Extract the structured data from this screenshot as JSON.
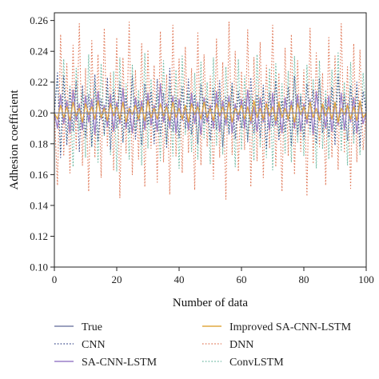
{
  "chart_data": {
    "type": "line",
    "xlabel": "Number of data",
    "ylabel": "Adhesion coefficient",
    "xlim": [
      0,
      100
    ],
    "ylim": [
      0.1,
      0.265
    ],
    "x_ticks": [
      0,
      20,
      40,
      60,
      80,
      100
    ],
    "x_tick_labels": [
      "0",
      "20",
      "40",
      "60",
      "80",
      "100"
    ],
    "y_ticks": [
      0.1,
      0.12,
      0.14,
      0.16,
      0.18,
      0.2,
      0.22,
      0.24,
      0.26
    ],
    "y_tick_labels": [
      "0.10",
      "0.12",
      "0.14",
      "0.16",
      "0.18",
      "0.20",
      "0.22",
      "0.24",
      "0.26"
    ],
    "grid": false,
    "legend_position": "bottom",
    "series": [
      {
        "name": "True",
        "color": "#7a82a8",
        "style": "solid",
        "x": [
          0,
          100
        ],
        "values": [
          0.2,
          0.2
        ]
      },
      {
        "name": "CNN",
        "color": "#3a4a8c",
        "style": "dotted",
        "x": [
          0,
          1,
          2,
          3,
          4,
          5,
          6,
          7,
          8,
          9,
          10,
          11,
          12,
          13,
          14,
          15,
          16,
          17,
          18,
          19,
          20,
          21,
          22,
          23,
          24,
          25,
          26,
          27,
          28,
          29,
          30,
          31,
          32,
          33,
          34,
          35,
          36,
          37,
          38,
          39,
          40,
          41,
          42,
          43,
          44,
          45,
          46,
          47,
          48,
          49,
          50,
          51,
          52,
          53,
          54,
          55,
          56,
          57,
          58,
          59,
          60,
          61,
          62,
          63,
          64,
          65,
          66,
          67,
          68,
          69,
          70,
          71,
          72,
          73,
          74,
          75,
          76,
          77,
          78,
          79,
          80,
          81,
          82,
          83,
          84,
          85,
          86,
          87,
          88,
          89,
          90,
          91,
          92,
          93,
          94,
          95,
          96,
          97,
          98,
          99,
          100
        ],
        "values": [
          0.2,
          0.226,
          0.171,
          0.224,
          0.179,
          0.216,
          0.188,
          0.221,
          0.175,
          0.218,
          0.184,
          0.212,
          0.178,
          0.225,
          0.182,
          0.209,
          0.186,
          0.223,
          0.176,
          0.215,
          0.19,
          0.22,
          0.181,
          0.211,
          0.187,
          0.224,
          0.183,
          0.208,
          0.179,
          0.219,
          0.192,
          0.214,
          0.18,
          0.222,
          0.185,
          0.213,
          0.177,
          0.229,
          0.188,
          0.21,
          0.184,
          0.217,
          0.19,
          0.222,
          0.186,
          0.212,
          0.18,
          0.219,
          0.193,
          0.209,
          0.182,
          0.216,
          0.189,
          0.221,
          0.178,
          0.211,
          0.186,
          0.22,
          0.183,
          0.214,
          0.19,
          0.209,
          0.181,
          0.223,
          0.187,
          0.212,
          0.184,
          0.218,
          0.177,
          0.213,
          0.191,
          0.221,
          0.182,
          0.208,
          0.188,
          0.217,
          0.179,
          0.224,
          0.186,
          0.211,
          0.183,
          0.219,
          0.19,
          0.215,
          0.18,
          0.222,
          0.187,
          0.209,
          0.184,
          0.217,
          0.179,
          0.225,
          0.189,
          0.212,
          0.182,
          0.218,
          0.186,
          0.22,
          0.178,
          0.214,
          0.2
        ]
      },
      {
        "name": "SA-CNN-LSTM",
        "color": "#9a7ec8",
        "style": "solid",
        "x": [
          0,
          1,
          2,
          3,
          4,
          5,
          6,
          7,
          8,
          9,
          10,
          11,
          12,
          13,
          14,
          15,
          16,
          17,
          18,
          19,
          20,
          21,
          22,
          23,
          24,
          25,
          26,
          27,
          28,
          29,
          30,
          31,
          32,
          33,
          34,
          35,
          36,
          37,
          38,
          39,
          40,
          41,
          42,
          43,
          44,
          45,
          46,
          47,
          48,
          49,
          50,
          51,
          52,
          53,
          54,
          55,
          56,
          57,
          58,
          59,
          60,
          61,
          62,
          63,
          64,
          65,
          66,
          67,
          68,
          69,
          70,
          71,
          72,
          73,
          74,
          75,
          76,
          77,
          78,
          79,
          80,
          81,
          82,
          83,
          84,
          85,
          86,
          87,
          88,
          89,
          90,
          91,
          92,
          93,
          94,
          95,
          96,
          97,
          98,
          99,
          100
        ],
        "values": [
          0.2,
          0.19,
          0.212,
          0.193,
          0.208,
          0.187,
          0.215,
          0.195,
          0.206,
          0.189,
          0.211,
          0.194,
          0.209,
          0.186,
          0.214,
          0.196,
          0.205,
          0.191,
          0.212,
          0.188,
          0.207,
          0.193,
          0.216,
          0.19,
          0.204,
          0.187,
          0.21,
          0.195,
          0.208,
          0.189,
          0.213,
          0.192,
          0.205,
          0.188,
          0.219,
          0.194,
          0.206,
          0.19,
          0.211,
          0.187,
          0.209,
          0.195,
          0.204,
          0.189,
          0.213,
          0.193,
          0.207,
          0.186,
          0.21,
          0.194,
          0.205,
          0.19,
          0.214,
          0.188,
          0.208,
          0.192,
          0.211,
          0.187,
          0.206,
          0.195,
          0.209,
          0.19,
          0.215,
          0.193,
          0.204,
          0.188,
          0.21,
          0.194,
          0.207,
          0.189,
          0.213,
          0.192,
          0.205,
          0.187,
          0.21,
          0.195,
          0.208,
          0.19,
          0.212,
          0.188,
          0.206,
          0.193,
          0.209,
          0.186,
          0.214,
          0.195,
          0.205,
          0.19,
          0.211,
          0.188,
          0.207,
          0.192,
          0.213,
          0.189,
          0.206,
          0.194,
          0.21,
          0.187,
          0.208,
          0.193,
          0.2
        ]
      },
      {
        "name": "Improved SA-CNN-LSTM",
        "color": "#e0a840",
        "style": "solid",
        "x": [
          0,
          1,
          2,
          3,
          4,
          5,
          6,
          7,
          8,
          9,
          10,
          11,
          12,
          13,
          14,
          15,
          16,
          17,
          18,
          19,
          20,
          21,
          22,
          23,
          24,
          25,
          26,
          27,
          28,
          29,
          30,
          31,
          32,
          33,
          34,
          35,
          36,
          37,
          38,
          39,
          40,
          41,
          42,
          43,
          44,
          45,
          46,
          47,
          48,
          49,
          50,
          51,
          52,
          53,
          54,
          55,
          56,
          57,
          58,
          59,
          60,
          61,
          62,
          63,
          64,
          65,
          66,
          67,
          68,
          69,
          70,
          71,
          72,
          73,
          74,
          75,
          76,
          77,
          78,
          79,
          80,
          81,
          82,
          83,
          84,
          85,
          86,
          87,
          88,
          89,
          90,
          91,
          92,
          93,
          94,
          95,
          96,
          97,
          98,
          99,
          100
        ],
        "values": [
          0.2,
          0.196,
          0.205,
          0.197,
          0.204,
          0.195,
          0.207,
          0.198,
          0.203,
          0.194,
          0.206,
          0.199,
          0.204,
          0.196,
          0.208,
          0.197,
          0.203,
          0.195,
          0.206,
          0.198,
          0.204,
          0.196,
          0.207,
          0.194,
          0.203,
          0.199,
          0.205,
          0.196,
          0.204,
          0.195,
          0.208,
          0.197,
          0.203,
          0.196,
          0.206,
          0.198,
          0.204,
          0.195,
          0.207,
          0.197,
          0.203,
          0.196,
          0.205,
          0.194,
          0.206,
          0.199,
          0.204,
          0.196,
          0.207,
          0.197,
          0.203,
          0.195,
          0.206,
          0.198,
          0.204,
          0.196,
          0.207,
          0.194,
          0.203,
          0.199,
          0.205,
          0.196,
          0.204,
          0.195,
          0.208,
          0.197,
          0.203,
          0.196,
          0.206,
          0.198,
          0.204,
          0.195,
          0.207,
          0.197,
          0.203,
          0.196,
          0.205,
          0.194,
          0.206,
          0.199,
          0.204,
          0.196,
          0.207,
          0.197,
          0.203,
          0.195,
          0.206,
          0.198,
          0.204,
          0.196,
          0.207,
          0.194,
          0.203,
          0.199,
          0.205,
          0.196,
          0.204,
          0.195,
          0.208,
          0.197,
          0.2
        ]
      },
      {
        "name": "DNN",
        "color": "#e07a5a",
        "style": "dotted",
        "x": [
          0,
          1,
          2,
          3,
          4,
          5,
          6,
          7,
          8,
          9,
          10,
          11,
          12,
          13,
          14,
          15,
          16,
          17,
          18,
          19,
          20,
          21,
          22,
          23,
          24,
          25,
          26,
          27,
          28,
          29,
          30,
          31,
          32,
          33,
          34,
          35,
          36,
          37,
          38,
          39,
          40,
          41,
          42,
          43,
          44,
          45,
          46,
          47,
          48,
          49,
          50,
          51,
          52,
          53,
          54,
          55,
          56,
          57,
          58,
          59,
          60,
          61,
          62,
          63,
          64,
          65,
          66,
          67,
          68,
          69,
          70,
          71,
          72,
          73,
          74,
          75,
          76,
          77,
          78,
          79,
          80,
          81,
          82,
          83,
          84,
          85,
          86,
          87,
          88,
          89,
          90,
          91,
          92,
          93,
          94,
          95,
          96,
          97,
          98,
          99,
          100
        ],
        "values": [
          0.2,
          0.153,
          0.251,
          0.172,
          0.232,
          0.161,
          0.244,
          0.176,
          0.258,
          0.166,
          0.229,
          0.149,
          0.247,
          0.171,
          0.238,
          0.158,
          0.255,
          0.178,
          0.226,
          0.163,
          0.249,
          0.145,
          0.236,
          0.174,
          0.259,
          0.16,
          0.228,
          0.17,
          0.245,
          0.152,
          0.241,
          0.177,
          0.231,
          0.155,
          0.253,
          0.168,
          0.225,
          0.147,
          0.257,
          0.172,
          0.235,
          0.161,
          0.243,
          0.174,
          0.229,
          0.15,
          0.252,
          0.166,
          0.238,
          0.178,
          0.224,
          0.157,
          0.248,
          0.171,
          0.233,
          0.144,
          0.259,
          0.173,
          0.24,
          0.162,
          0.227,
          0.176,
          0.254,
          0.152,
          0.236,
          0.169,
          0.246,
          0.158,
          0.231,
          0.177,
          0.257,
          0.165,
          0.226,
          0.149,
          0.242,
          0.172,
          0.251,
          0.16,
          0.234,
          0.175,
          0.228,
          0.146,
          0.255,
          0.167,
          0.239,
          0.178,
          0.226,
          0.153,
          0.249,
          0.171,
          0.237,
          0.163,
          0.258,
          0.174,
          0.23,
          0.151,
          0.245,
          0.168,
          0.241,
          0.176,
          0.2
        ]
      },
      {
        "name": "ConvLSTM",
        "color": "#6ab8a0",
        "style": "dotted",
        "x": [
          0,
          1,
          2,
          3,
          4,
          5,
          6,
          7,
          8,
          9,
          10,
          11,
          12,
          13,
          14,
          15,
          16,
          17,
          18,
          19,
          20,
          21,
          22,
          23,
          24,
          25,
          26,
          27,
          28,
          29,
          30,
          31,
          32,
          33,
          34,
          35,
          36,
          37,
          38,
          39,
          40,
          41,
          42,
          43,
          44,
          45,
          46,
          47,
          48,
          49,
          50,
          51,
          52,
          53,
          54,
          55,
          56,
          57,
          58,
          59,
          60,
          61,
          62,
          63,
          64,
          65,
          66,
          67,
          68,
          69,
          70,
          71,
          72,
          73,
          74,
          75,
          76,
          77,
          78,
          79,
          80,
          81,
          82,
          83,
          84,
          85,
          86,
          87,
          88,
          89,
          90,
          91,
          92,
          93,
          94,
          95,
          96,
          97,
          98,
          99,
          100
        ],
        "values": [
          0.2,
          0.223,
          0.174,
          0.235,
          0.182,
          0.218,
          0.165,
          0.229,
          0.189,
          0.214,
          0.171,
          0.238,
          0.178,
          0.221,
          0.168,
          0.232,
          0.185,
          0.216,
          0.173,
          0.227,
          0.162,
          0.236,
          0.181,
          0.219,
          0.17,
          0.231,
          0.188,
          0.215,
          0.166,
          0.239,
          0.177,
          0.222,
          0.184,
          0.212,
          0.169,
          0.234,
          0.18,
          0.217,
          0.172,
          0.228,
          0.164,
          0.237,
          0.186,
          0.213,
          0.175,
          0.226,
          0.17,
          0.233,
          0.183,
          0.22,
          0.167,
          0.236,
          0.179,
          0.214,
          0.173,
          0.23,
          0.187,
          0.218,
          0.165,
          0.235,
          0.176,
          0.224,
          0.182,
          0.211,
          0.169,
          0.238,
          0.178,
          0.216,
          0.171,
          0.229,
          0.163,
          0.232,
          0.185,
          0.219,
          0.174,
          0.227,
          0.168,
          0.237,
          0.181,
          0.213,
          0.172,
          0.231,
          0.186,
          0.222,
          0.164,
          0.234,
          0.177,
          0.215,
          0.17,
          0.228,
          0.183,
          0.239,
          0.175,
          0.22,
          0.166,
          0.233,
          0.18,
          0.217,
          0.173,
          0.226,
          0.2
        ]
      }
    ]
  }
}
